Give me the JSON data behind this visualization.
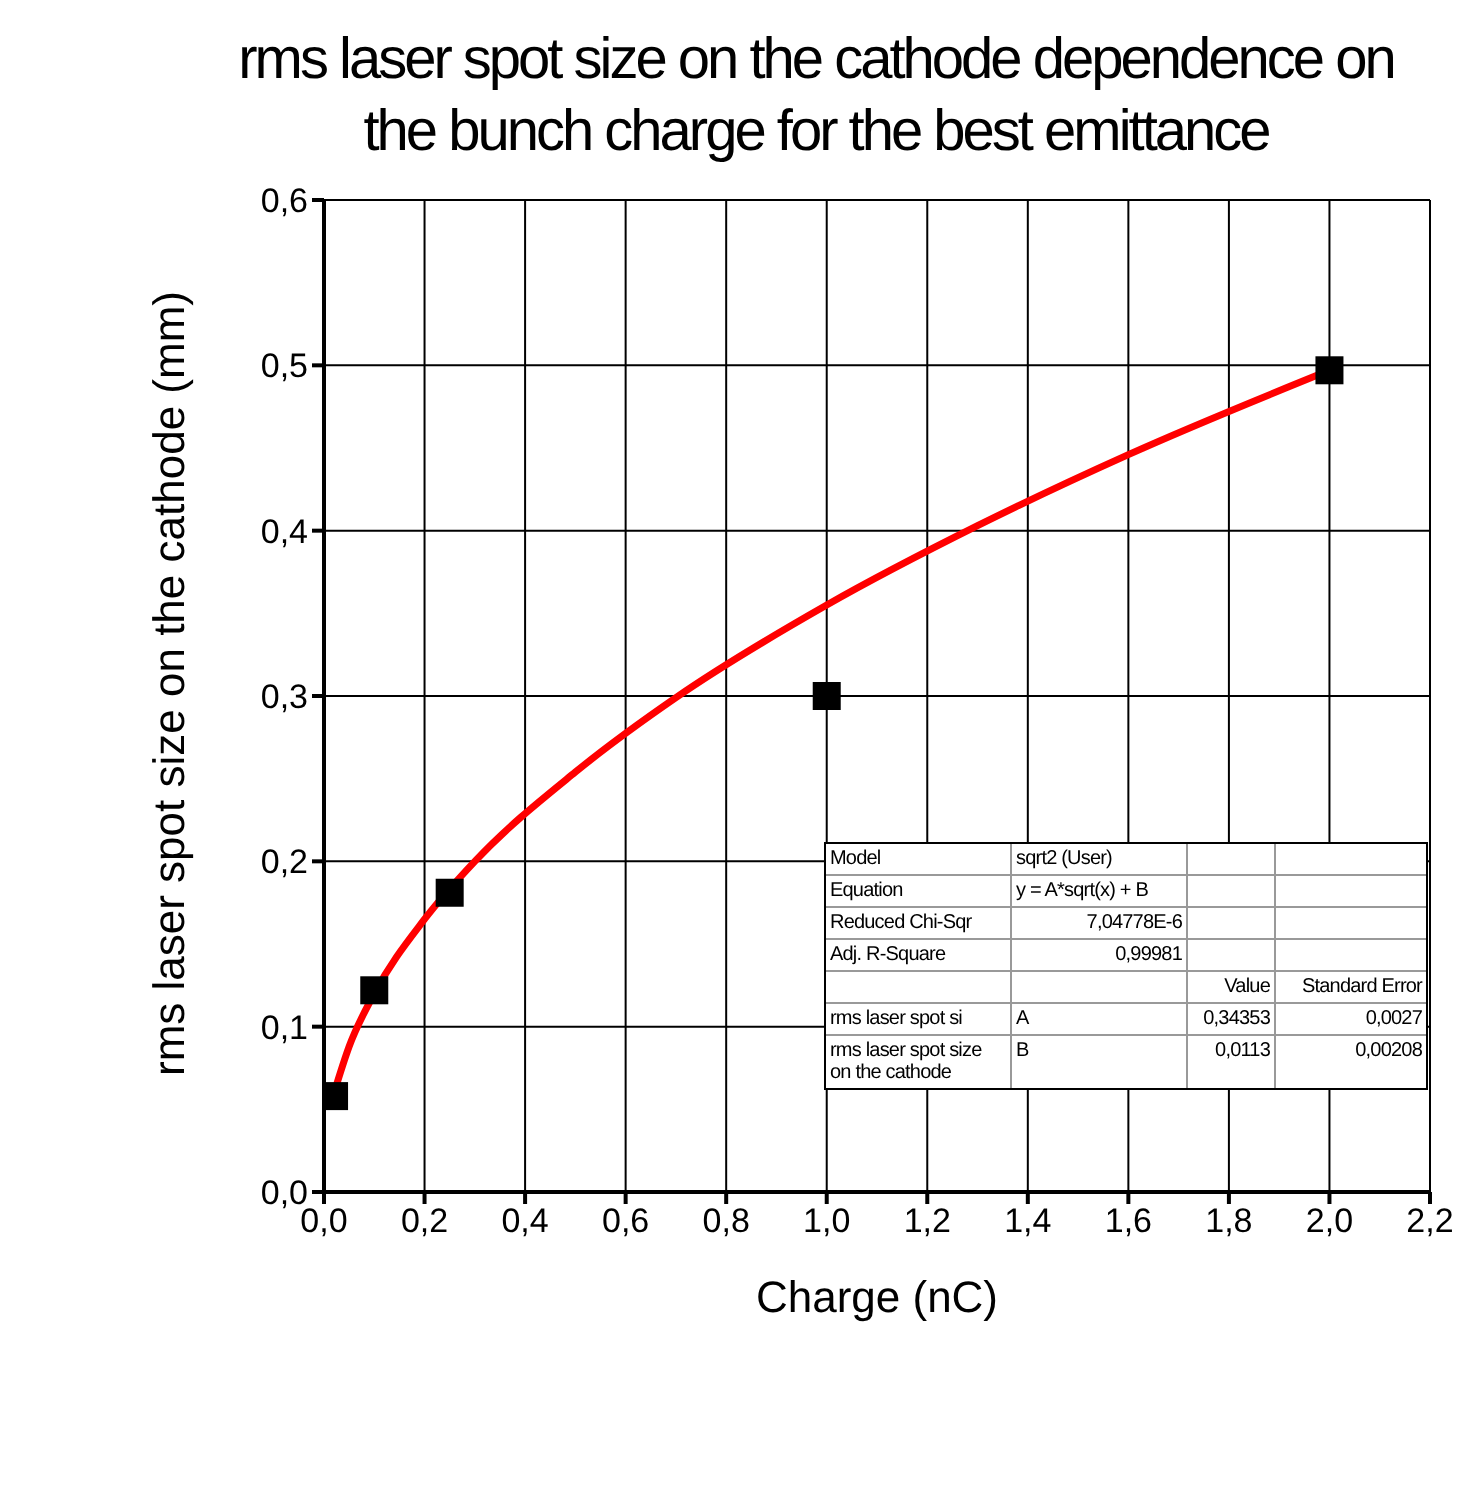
{
  "chart_data": {
    "type": "scatter",
    "title": "rms laser spot size on the cathode dependence on the bunch charge for the best emittance",
    "xlabel": "Charge (nC)",
    "ylabel": "rms laser spot size on the cathode (mm)",
    "xlim": [
      0,
      2.2
    ],
    "ylim": [
      0,
      0.6
    ],
    "xticks": [
      {
        "value": 0,
        "label": "0,0"
      },
      {
        "value": 0.2,
        "label": "0,2"
      },
      {
        "value": 0.4,
        "label": "0,4"
      },
      {
        "value": 0.6,
        "label": "0,6"
      },
      {
        "value": 0.8,
        "label": "0,8"
      },
      {
        "value": 1,
        "label": "1,0"
      },
      {
        "value": 1.2,
        "label": "1,2"
      },
      {
        "value": 1.4,
        "label": "1,4"
      },
      {
        "value": 1.6,
        "label": "1,6"
      },
      {
        "value": 1.8,
        "label": "1,8"
      },
      {
        "value": 2,
        "label": "2,0"
      },
      {
        "value": 2.2,
        "label": "2,2"
      }
    ],
    "yticks": [
      {
        "value": 0,
        "label": "0,0"
      },
      {
        "value": 0.1,
        "label": "0,1"
      },
      {
        "value": 0.2,
        "label": "0,2"
      },
      {
        "value": 0.3,
        "label": "0,3"
      },
      {
        "value": 0.4,
        "label": "0,4"
      },
      {
        "value": 0.5,
        "label": "0,5"
      },
      {
        "value": 0.6,
        "label": "0,6"
      }
    ],
    "grid": true,
    "marker": "square",
    "legend": false,
    "series": [
      {
        "color": "#000000",
        "x": [
          0.02,
          0.1,
          0.25,
          1.0,
          2.0
        ],
        "values": [
          0.058,
          0.122,
          0.181,
          0.3,
          0.497
        ]
      },
      {
        "type": "line",
        "color": "#ff0000",
        "marker": "none",
        "x": [
          0.02,
          0.05,
          0.1,
          0.2,
          0.3,
          0.5,
          0.7,
          1.0,
          1.3,
          1.6,
          2.0
        ],
        "values": [
          0.06,
          0.088,
          0.12,
          0.165,
          0.2,
          0.254,
          0.299,
          0.355,
          0.403,
          0.446,
          0.497
        ]
      }
    ],
    "annotations": [
      "Model",
      "sqrt2 (User)",
      "Equation",
      "y = A*sqrt(x) + B",
      "Reduced Chi-Sqr",
      "7,04778E-6",
      "Adj. R-Square",
      "0,99981",
      "Value",
      "Standard Error",
      "rms laser spot si",
      "A",
      "0,34353",
      "0,0027",
      "rms laser spot size on the cathode",
      "B",
      "0,0113",
      "0,00208"
    ]
  }
}
